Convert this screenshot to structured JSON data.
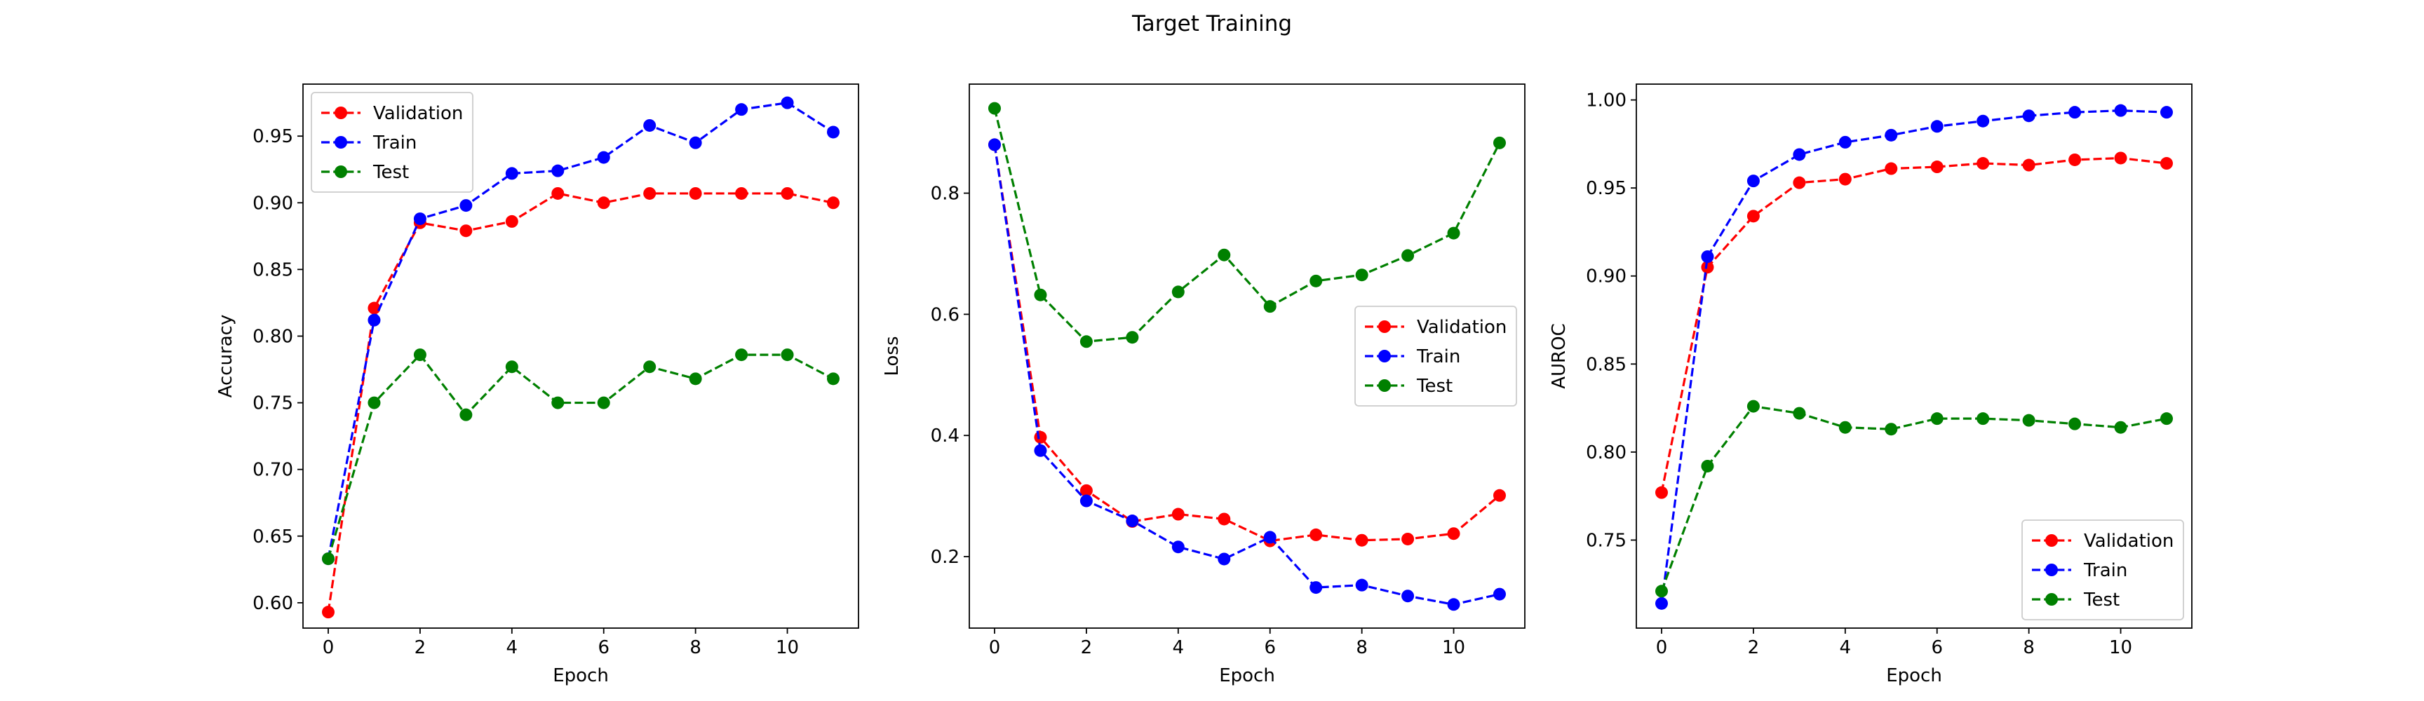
{
  "figure": {
    "title": "Target Training"
  },
  "chart_data": [
    {
      "type": "line",
      "xlabel": "Epoch",
      "ylabel": "Accuracy",
      "x": [
        0,
        1,
        2,
        3,
        4,
        5,
        6,
        7,
        8,
        9,
        10,
        11
      ],
      "xlim": [
        -0.55,
        11.55
      ],
      "ylim": [
        0.581,
        0.989
      ],
      "xticks": [
        0,
        2,
        4,
        6,
        8,
        10
      ],
      "yticks": [
        0.6,
        0.65,
        0.7,
        0.75,
        0.8,
        0.85,
        0.9,
        0.95
      ],
      "ytick_labels": [
        "0.60",
        "0.65",
        "0.70",
        "0.75",
        "0.80",
        "0.85",
        "0.90",
        "0.95"
      ],
      "legend_position": "upper-left",
      "series": [
        {
          "name": "Validation",
          "color": "#ff0000",
          "values": [
            0.593,
            0.821,
            0.885,
            0.879,
            0.886,
            0.907,
            0.9,
            0.907,
            0.907,
            0.907,
            0.907,
            0.9
          ]
        },
        {
          "name": "Train",
          "color": "#0000ff",
          "values": [
            0.633,
            0.812,
            0.888,
            0.898,
            0.922,
            0.924,
            0.934,
            0.958,
            0.945,
            0.97,
            0.975,
            0.953
          ]
        },
        {
          "name": "Test",
          "color": "#008000",
          "values": [
            0.633,
            0.75,
            0.786,
            0.741,
            0.777,
            0.75,
            0.75,
            0.777,
            0.768,
            0.786,
            0.786,
            0.768
          ]
        }
      ]
    },
    {
      "type": "line",
      "xlabel": "Epoch",
      "ylabel": "Loss",
      "x": [
        0,
        1,
        2,
        3,
        4,
        5,
        6,
        7,
        8,
        9,
        10,
        11
      ],
      "xlim": [
        -0.55,
        11.55
      ],
      "ylim": [
        0.082,
        0.98
      ],
      "xticks": [
        0,
        2,
        4,
        6,
        8,
        10
      ],
      "yticks": [
        0.2,
        0.4,
        0.6,
        0.8
      ],
      "ytick_labels": [
        "0.2",
        "0.4",
        "0.6",
        "0.8"
      ],
      "legend_position": "center-right",
      "series": [
        {
          "name": "Validation",
          "color": "#ff0000",
          "values": [
            0.88,
            0.397,
            0.309,
            0.258,
            0.27,
            0.262,
            0.226,
            0.236,
            0.227,
            0.229,
            0.238,
            0.301
          ]
        },
        {
          "name": "Train",
          "color": "#0000ff",
          "values": [
            0.88,
            0.375,
            0.292,
            0.259,
            0.216,
            0.196,
            0.232,
            0.149,
            0.153,
            0.135,
            0.121,
            0.138
          ]
        },
        {
          "name": "Test",
          "color": "#008000",
          "values": [
            0.94,
            0.632,
            0.555,
            0.562,
            0.637,
            0.698,
            0.613,
            0.655,
            0.665,
            0.697,
            0.734,
            0.883
          ]
        }
      ]
    },
    {
      "type": "line",
      "xlabel": "Epoch",
      "ylabel": "AUROC",
      "x": [
        0,
        1,
        2,
        3,
        4,
        5,
        6,
        7,
        8,
        9,
        10,
        11
      ],
      "xlim": [
        -0.55,
        11.55
      ],
      "ylim": [
        0.7,
        1.009
      ],
      "xticks": [
        0,
        2,
        4,
        6,
        8,
        10
      ],
      "yticks": [
        0.75,
        0.8,
        0.85,
        0.9,
        0.95,
        1.0
      ],
      "ytick_labels": [
        "0.75",
        "0.80",
        "0.85",
        "0.90",
        "0.95",
        "1.00"
      ],
      "legend_position": "lower-right",
      "series": [
        {
          "name": "Validation",
          "color": "#ff0000",
          "values": [
            0.777,
            0.905,
            0.934,
            0.953,
            0.955,
            0.961,
            0.962,
            0.964,
            0.963,
            0.966,
            0.967,
            0.964
          ]
        },
        {
          "name": "Train",
          "color": "#0000ff",
          "values": [
            0.714,
            0.911,
            0.954,
            0.969,
            0.976,
            0.98,
            0.985,
            0.988,
            0.991,
            0.993,
            0.994,
            0.993
          ]
        },
        {
          "name": "Test",
          "color": "#008000",
          "values": [
            0.721,
            0.792,
            0.826,
            0.822,
            0.814,
            0.813,
            0.819,
            0.819,
            0.818,
            0.816,
            0.814,
            0.819
          ]
        }
      ]
    }
  ]
}
